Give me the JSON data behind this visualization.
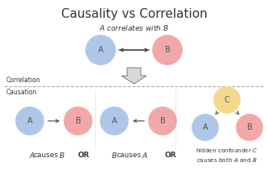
{
  "title": "Causality vs Correlation",
  "title_fontsize": 11,
  "bg_color": "#ffffff",
  "node_A_color": "#aec6e8",
  "node_B_color": "#f2a8a8",
  "node_C_color": "#f5d98b",
  "text_color": "#333333",
  "dashed_line_color": "#aaaaaa",
  "arrow_color": "#555555",
  "corr_label": "Correlation",
  "caus_label": "Causation",
  "top_label": "A correlates with B"
}
